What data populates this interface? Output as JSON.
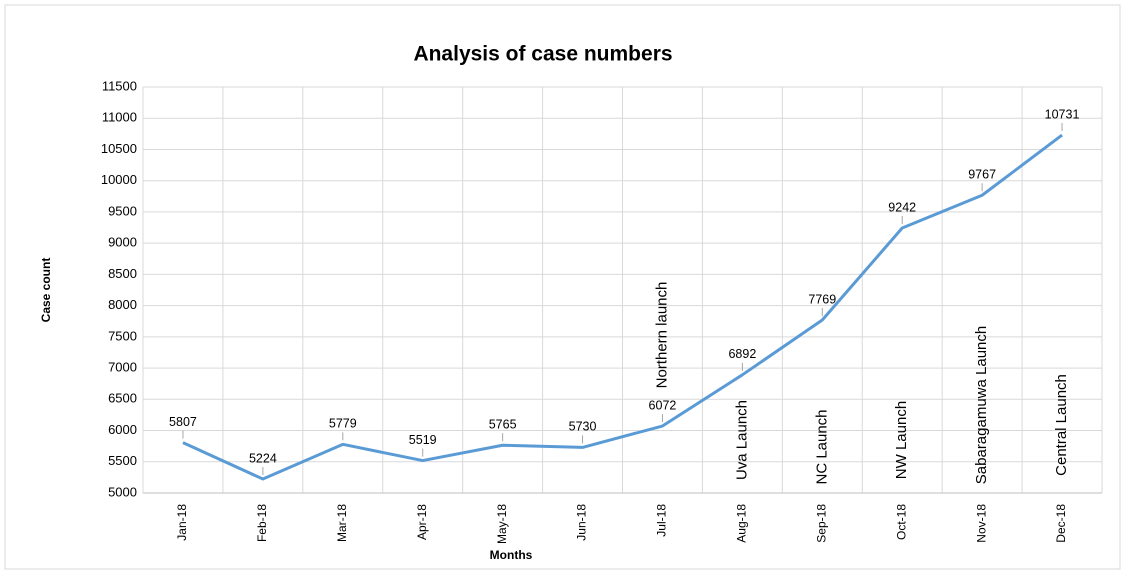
{
  "chart_data": {
    "type": "line",
    "title": "Analysis of case numbers",
    "x_label": "Months",
    "y_label": "Case count",
    "categories": [
      "Jan-18",
      "Feb-18",
      "Mar-18",
      "Apr-18",
      "May-18",
      "Jun-18",
      "Jul-18",
      "Aug-18",
      "Sep-18",
      "Oct-18",
      "Nov-18",
      "Dec-18"
    ],
    "series": [
      {
        "name": "Case count",
        "color": "#5b9bd5",
        "values": [
          5807,
          5224,
          5779,
          5519,
          5765,
          5730,
          6072,
          6892,
          7769,
          9242,
          9767,
          10731
        ]
      }
    ],
    "ylim": [
      5000,
      11500
    ],
    "yticks": [
      5000,
      5500,
      6000,
      6500,
      7000,
      7500,
      8000,
      8500,
      9000,
      9500,
      10000,
      10500,
      11000,
      11500
    ],
    "grid": true,
    "data_labels": true,
    "annotations": [
      {
        "text": "Northern launch",
        "x": "Jul-18"
      },
      {
        "text": "Uva Launch",
        "x": "Aug-18"
      },
      {
        "text": "NC Launch",
        "x": "Sep-18"
      },
      {
        "text": "NW Launch",
        "x": "Oct-18"
      },
      {
        "text": "Sabaragamuwa Launch",
        "x": "Nov-18"
      },
      {
        "text": "Central Launch",
        "x": "Dec-18"
      }
    ]
  }
}
